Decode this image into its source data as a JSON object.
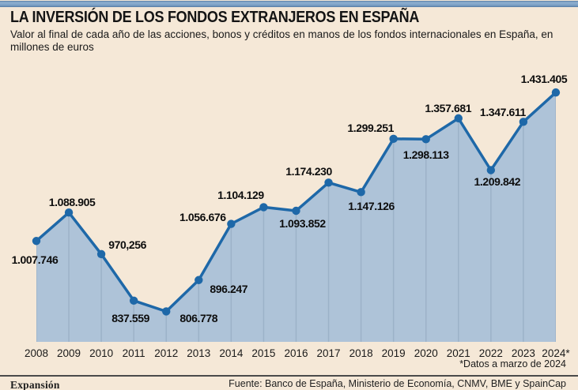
{
  "header": {
    "title": "LA INVERSIÓN DE LOS FONDOS EXTRANJEROS EN ESPAÑA",
    "subtitle": "Valor al final de cada año de las acciones, bonos y créditos en manos de los fondos internacionales en España, en millones de euros"
  },
  "chart_data": {
    "type": "area",
    "title": "LA INVERSIÓN DE LOS FONDOS EXTRANJEROS EN ESPAÑA",
    "x": [
      "2008",
      "2009",
      "2010",
      "2011",
      "2012",
      "2013",
      "2014",
      "2015",
      "2016",
      "2017",
      "2018",
      "2019",
      "2020",
      "2021",
      "2022",
      "2023",
      "2024*"
    ],
    "values": [
      1007746,
      1088905,
      970256,
      837559,
      806778,
      896247,
      1056676,
      1104129,
      1093852,
      1174230,
      1147126,
      1299251,
      1298113,
      1357681,
      1209842,
      1347611,
      1431405
    ],
    "point_labels": [
      "1.007.746",
      "1.088.905",
      "970,256",
      "837.559",
      "806.778",
      "896.247",
      "1.056.676",
      "1.104.129",
      "1.093.852",
      "1.174.230",
      "1.147.126",
      "1.299.251",
      "1.298.113",
      "1.357.681",
      "1.209.842",
      "1.347.611",
      "1.431.405"
    ],
    "xlabel": "",
    "ylabel": "",
    "ylim": [
      720000,
      1460000
    ],
    "grid": "vertical, clipped inside area fill",
    "legend": "none",
    "colors": {
      "line": "#1e68a8",
      "fill": "#aec3d8",
      "grid": "#9cb2c8",
      "background": "#f5e8d7",
      "accent_bar": "#7ba0c4"
    }
  },
  "footnote": "*Datos a marzo de 2024",
  "footer": {
    "brand": "Expansión",
    "source": "Fuente: Banco de España, Ministerio de Economía, CNMV, BME y SpainCap"
  }
}
